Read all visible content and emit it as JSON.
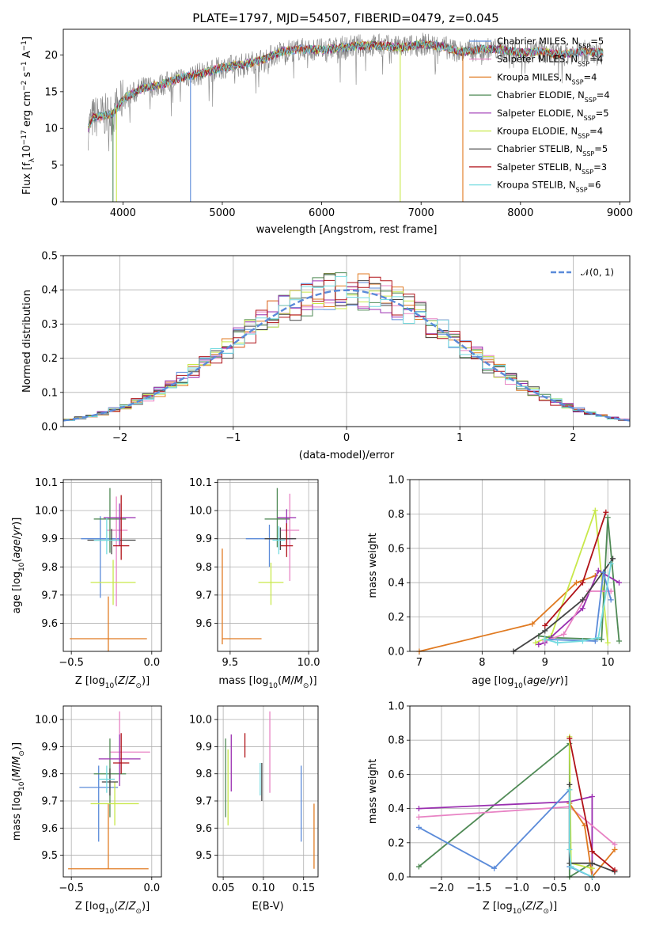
{
  "title": "PLATE=1797, MJD=54507, FIBERID=0479, z=0.045",
  "colors": {
    "chabrier_miles": "#5b8bd9",
    "salpeter_miles": "#e883c4",
    "kroupa_miles": "#e07a21",
    "chabrier_elodie": "#4f8a55",
    "salpeter_elodie": "#9a2fb0",
    "kroupa_elodie": "#c8e84a",
    "chabrier_stelib": "#444444",
    "salpeter_stelib": "#b01218",
    "kroupa_stelib": "#74dbe0",
    "normal": "#5b8bd9"
  },
  "chart_data": [
    {
      "id": "spectrum",
      "type": "line",
      "xlabel": "wavelength [Angstrom, rest frame]",
      "ylabel": "Flux [f_λ10^-17 erg cm^-2 s^-1 A^-1]",
      "xlim": [
        3400,
        9100
      ],
      "ylim": [
        0,
        23.5
      ],
      "xticks": [
        "4000",
        "5000",
        "6000",
        "7000",
        "8000",
        "9000"
      ],
      "yticks": [
        "0",
        "5",
        "10",
        "15",
        "20"
      ],
      "continuum": {
        "x": [
          3650,
          3700,
          3900,
          4000,
          4200,
          4400,
          4600,
          4800,
          5000,
          5200,
          5400,
          5600,
          5800,
          6000,
          6200,
          6400,
          6600,
          6800,
          7000,
          7200,
          7400,
          7600,
          7800,
          8000,
          8200,
          8400,
          8600,
          8800
        ],
        "y": [
          10,
          11.5,
          12,
          14,
          15.5,
          16,
          17,
          17.5,
          18.3,
          18.7,
          19.3,
          20.5,
          20.8,
          20.7,
          21.0,
          21.3,
          21.3,
          21.0,
          21.5,
          21.2,
          20.4,
          20.8,
          20.8,
          20.3,
          20.5,
          20.0,
          20.5,
          20.3
        ]
      },
      "legend": [
        {
          "label": "Chabrier MILES, N_SSP=5",
          "text": "Chabrier MILES, N",
          "sub": "SSP",
          "tail": "=5",
          "color": "#5b8bd9"
        },
        {
          "label": "Salpeter MILES, N_SSP=4",
          "text": "Salpeter MILES, N",
          "sub": "SSP",
          "tail": "=4",
          "color": "#e883c4"
        },
        {
          "label": "Kroupa MILES, N_SSP=4",
          "text": "Kroupa MILES, N",
          "sub": "SSP",
          "tail": "=4",
          "color": "#e07a21"
        },
        {
          "label": "Chabrier ELODIE, N_SSP=4",
          "text": "Chabrier ELODIE, N",
          "sub": "SSP",
          "tail": "=4",
          "color": "#4f8a55"
        },
        {
          "label": "Salpeter ELODIE, N_SSP=5",
          "text": "Salpeter ELODIE, N",
          "sub": "SSP",
          "tail": "=5",
          "color": "#9a2fb0"
        },
        {
          "label": "Kroupa ELODIE, N_SSP=4",
          "text": "Kroupa ELODIE, N",
          "sub": "SSP",
          "tail": "=4",
          "color": "#c8e84a"
        },
        {
          "label": "Chabrier STELIB, N_SSP=5",
          "text": "Chabrier STELIB, N",
          "sub": "SSP",
          "tail": "=5",
          "color": "#444444"
        },
        {
          "label": "Salpeter STELIB, N_SSP=3",
          "text": "Salpeter STELIB, N",
          "sub": "SSP",
          "tail": "=3",
          "color": "#b01218"
        },
        {
          "label": "Kroupa STELIB, N_SSP=6",
          "text": "Kroupa STELIB, N",
          "sub": "SSP",
          "tail": "=6",
          "color": "#74dbe0"
        }
      ],
      "grid": false
    },
    {
      "id": "residuals",
      "type": "line",
      "xlabel": "(data-model)/error",
      "ylabel": "Normed distribution",
      "xlim": [
        -2.5,
        2.5
      ],
      "ylim": [
        0,
        0.5
      ],
      "xticks": [
        "−2",
        "−1",
        "0",
        "1",
        "2"
      ],
      "yticks": [
        "0.0",
        "0.1",
        "0.2",
        "0.3",
        "0.4",
        "0.5"
      ],
      "legend": [
        {
          "label": "𝒩(0, 1)",
          "color": "#5b8bd9",
          "style": "dashed"
        }
      ],
      "grid": true
    },
    {
      "id": "age_vs_z",
      "type": "scatter",
      "xlabel": "Z [log10(Z/Z⊙)]",
      "ylabel": "age [log10(age/yr)]",
      "xlim": [
        -0.55,
        0.06
      ],
      "ylim": [
        9.5,
        10.11
      ],
      "xticks": [
        "−0.5",
        "0.0"
      ],
      "yticks": [
        "9.6",
        "9.7",
        "9.8",
        "9.9",
        "10.0",
        "10.1"
      ],
      "points": [
        {
          "x": -0.32,
          "y": 9.9,
          "xerr": [
            0.12,
            0.12
          ],
          "yerr": [
            0.21,
            0.08
          ],
          "color": "#5b8bd9"
        },
        {
          "x": -0.22,
          "y": 9.93,
          "xerr": [
            0.06,
            0.07
          ],
          "yerr": [
            0.27,
            0.12
          ],
          "color": "#e883c4"
        },
        {
          "x": -0.27,
          "y": 9.545,
          "xerr": [
            0.24,
            0.24
          ],
          "yerr": [
            0.12,
            0.15
          ],
          "color": "#e07a21"
        },
        {
          "x": -0.26,
          "y": 9.97,
          "xerr": [
            0.1,
            0.1
          ],
          "yerr": [
            0.12,
            0.11
          ],
          "color": "#4f8a55"
        },
        {
          "x": -0.2,
          "y": 9.975,
          "xerr": [
            0.1,
            0.1
          ],
          "yerr": [
            0.1,
            0.05
          ],
          "color": "#9a2fb0"
        },
        {
          "x": -0.24,
          "y": 9.745,
          "xerr": [
            0.14,
            0.14
          ],
          "yerr": [
            0.08,
            0.08
          ],
          "color": "#c8e84a"
        },
        {
          "x": -0.25,
          "y": 9.895,
          "xerr": [
            0.15,
            0.15
          ],
          "yerr": [
            0.05,
            0.04
          ],
          "color": "#444444"
        },
        {
          "x": -0.19,
          "y": 9.875,
          "xerr": [
            0.05,
            0.05
          ],
          "yerr": [
            0.05,
            0.18
          ],
          "color": "#b01218"
        },
        {
          "x": -0.28,
          "y": 9.895,
          "xerr": [
            0.08,
            0.08
          ],
          "yerr": [
            0.05,
            0.08
          ],
          "color": "#74dbe0"
        }
      ],
      "grid": true
    },
    {
      "id": "age_vs_mass",
      "type": "scatter",
      "xlabel": "mass [log10(M/M⊙)]",
      "ylabel": "",
      "xlim": [
        9.42,
        10.06
      ],
      "ylim": [
        9.5,
        10.11
      ],
      "xticks": [
        "9.5",
        "10.0"
      ],
      "yticks": [
        "9.6",
        "9.7",
        "9.8",
        "9.9",
        "10.0",
        "10.1"
      ],
      "points": [
        {
          "x": 9.75,
          "y": 9.9,
          "xerr": [
            0.15,
            0.15
          ],
          "yerr": [
            0.1,
            0.05
          ],
          "color": "#5b8bd9"
        },
        {
          "x": 9.88,
          "y": 9.93,
          "xerr": [
            0.06,
            0.06
          ],
          "yerr": [
            0.18,
            0.13
          ],
          "color": "#e883c4"
        },
        {
          "x": 9.45,
          "y": 9.545,
          "xerr": [
            0.0,
            0.25
          ],
          "yerr": [
            0.02,
            0.32
          ],
          "color": "#e07a21"
        },
        {
          "x": 9.8,
          "y": 9.97,
          "xerr": [
            0.08,
            0.08
          ],
          "yerr": [
            0.1,
            0.11
          ],
          "color": "#4f8a55"
        },
        {
          "x": 9.86,
          "y": 9.975,
          "xerr": [
            0.06,
            0.06
          ],
          "yerr": [
            0.05,
            0.03
          ],
          "color": "#9a2fb0"
        },
        {
          "x": 9.76,
          "y": 9.745,
          "xerr": [
            0.08,
            0.08
          ],
          "yerr": [
            0.08,
            0.07
          ],
          "color": "#c8e84a"
        },
        {
          "x": 9.82,
          "y": 9.9,
          "xerr": [
            0.1,
            0.1
          ],
          "yerr": [
            0.04,
            0.04
          ],
          "color": "#444444"
        },
        {
          "x": 9.86,
          "y": 9.875,
          "xerr": [
            0.04,
            0.04
          ],
          "yerr": [
            0.04,
            0.08
          ],
          "color": "#b01218"
        },
        {
          "x": 9.81,
          "y": 9.895,
          "xerr": [
            0.04,
            0.04
          ],
          "yerr": [
            0.05,
            0.05
          ],
          "color": "#74dbe0"
        }
      ],
      "grid": true
    },
    {
      "id": "weight_vs_age",
      "type": "line",
      "xlabel": "age [log10(age/yr)]",
      "ylabel": "mass weight",
      "xlim": [
        6.85,
        10.35
      ],
      "ylim": [
        0,
        1.0
      ],
      "xticks": [
        "7",
        "8",
        "9",
        "10"
      ],
      "yticks": [
        "0.0",
        "0.2",
        "0.4",
        "0.6",
        "0.8",
        "1.0"
      ],
      "series": [
        {
          "color": "#e07a21",
          "x": [
            7.0,
            8.8,
            9.5,
            9.8
          ],
          "y": [
            0.0,
            0.16,
            0.4,
            0.44
          ]
        },
        {
          "color": "#c8e84a",
          "x": [
            8.85,
            9.1,
            9.8,
            10.0
          ],
          "y": [
            0.05,
            0.09,
            0.82,
            0.05
          ]
        },
        {
          "color": "#4f8a55",
          "x": [
            8.9,
            9.1,
            9.9,
            10.0,
            10.18
          ],
          "y": [
            0.09,
            0.08,
            0.07,
            0.78,
            0.06
          ]
        },
        {
          "color": "#9a2fb0",
          "x": [
            8.9,
            9.0,
            9.6,
            9.85,
            10.18
          ],
          "y": [
            0.04,
            0.05,
            0.25,
            0.47,
            0.4
          ]
        },
        {
          "color": "#e883c4",
          "x": [
            9.0,
            9.3,
            9.7,
            10.05
          ],
          "y": [
            0.06,
            0.1,
            0.35,
            0.35
          ]
        },
        {
          "color": "#444444",
          "x": [
            8.5,
            9.0,
            9.6,
            10.08
          ],
          "y": [
            0.0,
            0.12,
            0.3,
            0.54
          ]
        },
        {
          "color": "#b01218",
          "x": [
            9.0,
            9.6,
            9.97
          ],
          "y": [
            0.15,
            0.4,
            0.81
          ]
        },
        {
          "color": "#5b8bd9",
          "x": [
            9.0,
            9.8,
            9.93,
            10.05
          ],
          "y": [
            0.07,
            0.06,
            0.46,
            0.3
          ]
        },
        {
          "color": "#74dbe0",
          "x": [
            9.0,
            9.2,
            9.6,
            9.85,
            10.05
          ],
          "y": [
            0.07,
            0.05,
            0.06,
            0.08,
            0.51
          ]
        }
      ],
      "grid": true
    },
    {
      "id": "mass_vs_z",
      "type": "scatter",
      "xlabel": "Z [log10(Z/Z⊙)]",
      "ylabel": "mass [log10(M/M⊙)]",
      "xlim": [
        -0.55,
        0.06
      ],
      "ylim": [
        9.42,
        10.05
      ],
      "xticks": [
        "−0.5",
        "0.0"
      ],
      "yticks": [
        "9.5",
        "9.6",
        "9.7",
        "9.8",
        "9.9",
        "10.0"
      ],
      "points": [
        {
          "x": -0.33,
          "y": 9.75,
          "xerr": [
            0.12,
            0.12
          ],
          "yerr": [
            0.2,
            0.08
          ],
          "color": "#5b8bd9"
        },
        {
          "x": -0.2,
          "y": 9.88,
          "xerr": [
            0.06,
            0.19
          ],
          "yerr": [
            0.1,
            0.15
          ],
          "color": "#e883c4"
        },
        {
          "x": -0.27,
          "y": 9.45,
          "xerr": [
            0.25,
            0.25
          ],
          "yerr": [
            0.0,
            0.24
          ],
          "color": "#e07a21"
        },
        {
          "x": -0.26,
          "y": 9.8,
          "xerr": [
            0.1,
            0.1
          ],
          "yerr": [
            0.16,
            0.13
          ],
          "color": "#4f8a55"
        },
        {
          "x": -0.2,
          "y": 9.855,
          "xerr": [
            0.13,
            0.13
          ],
          "yerr": [
            0.1,
            0.09
          ],
          "color": "#9a2fb0"
        },
        {
          "x": -0.23,
          "y": 9.69,
          "xerr": [
            0.15,
            0.15
          ],
          "yerr": [
            0.08,
            0.08
          ],
          "color": "#c8e84a"
        },
        {
          "x": -0.26,
          "y": 9.77,
          "xerr": [
            0.05,
            0.05
          ],
          "yerr": [
            0.05,
            0.05
          ],
          "color": "#444444"
        },
        {
          "x": -0.19,
          "y": 9.84,
          "xerr": [
            0.05,
            0.05
          ],
          "yerr": [
            0.04,
            0.11
          ],
          "color": "#b01218"
        },
        {
          "x": -0.28,
          "y": 9.78,
          "xerr": [
            0.05,
            0.05
          ],
          "yerr": [
            0.05,
            0.05
          ],
          "color": "#74dbe0"
        }
      ],
      "grid": true
    },
    {
      "id": "mass_vs_ebv",
      "type": "scatter",
      "xlabel": "E(B-V)",
      "ylabel": "",
      "xlim": [
        0.043,
        0.168
      ],
      "ylim": [
        9.42,
        10.05
      ],
      "xticks": [
        "0.05",
        "0.10",
        "0.15"
      ],
      "yticks": [
        "9.5",
        "9.6",
        "9.7",
        "9.8",
        "9.9",
        "10.0"
      ],
      "points": [
        {
          "x": 0.147,
          "y": 9.75,
          "yerr": [
            0.2,
            0.08
          ],
          "color": "#5b8bd9"
        },
        {
          "x": 0.108,
          "y": 9.88,
          "yerr": [
            0.15,
            0.15
          ],
          "color": "#e883c4"
        },
        {
          "x": 0.163,
          "y": 9.45,
          "yerr": [
            0.0,
            0.24
          ],
          "color": "#e07a21"
        },
        {
          "x": 0.053,
          "y": 9.8,
          "yerr": [
            0.16,
            0.13
          ],
          "color": "#4f8a55"
        },
        {
          "x": 0.06,
          "y": 9.855,
          "yerr": [
            0.12,
            0.09
          ],
          "color": "#9a2fb0"
        },
        {
          "x": 0.056,
          "y": 9.69,
          "yerr": [
            0.08,
            0.2
          ],
          "color": "#c8e84a"
        },
        {
          "x": 0.098,
          "y": 9.77,
          "yerr": [
            0.07,
            0.07
          ],
          "color": "#444444"
        },
        {
          "x": 0.077,
          "y": 9.9,
          "yerr": [
            0.04,
            0.05
          ],
          "color": "#b01218"
        },
        {
          "x": 0.096,
          "y": 9.78,
          "yerr": [
            0.06,
            0.06
          ],
          "color": "#74dbe0"
        }
      ],
      "grid": true
    },
    {
      "id": "weight_vs_z",
      "type": "line",
      "xlabel": "Z [log10(Z/Z⊙)]",
      "ylabel": "mass weight",
      "xlim": [
        -2.42,
        0.5
      ],
      "ylim": [
        0,
        1.0
      ],
      "xticks": [
        "−2.0",
        "−1.5",
        "−1.0",
        "−0.5",
        "0.0"
      ],
      "yticks": [
        "0.0",
        "0.2",
        "0.4",
        "0.6",
        "0.8",
        "1.0"
      ],
      "series": [
        {
          "color": "#4f8a55",
          "x": [
            -2.3,
            -0.3,
            -0.3,
            0.0
          ],
          "y": [
            0.06,
            0.78,
            0.0,
            0.08
          ]
        },
        {
          "color": "#9a2fb0",
          "x": [
            -2.3,
            -0.3,
            0.0,
            0.0
          ],
          "y": [
            0.4,
            0.44,
            0.47,
            0.0
          ]
        },
        {
          "color": "#e883c4",
          "x": [
            -2.3,
            -0.3,
            0.3
          ],
          "y": [
            0.35,
            0.41,
            0.19
          ]
        },
        {
          "color": "#5b8bd9",
          "x": [
            -2.3,
            -1.3,
            -0.3,
            -0.3,
            0.0
          ],
          "y": [
            0.29,
            0.05,
            0.51,
            0.06,
            0.0
          ]
        },
        {
          "color": "#e07a21",
          "x": [
            -0.3,
            -0.1,
            0.0,
            0.3
          ],
          "y": [
            0.43,
            0.3,
            0.0,
            0.16
          ]
        },
        {
          "color": "#c8e84a",
          "x": [
            -0.3,
            -0.28,
            0.0
          ],
          "y": [
            0.82,
            0.08,
            0.05
          ]
        },
        {
          "color": "#444444",
          "x": [
            -0.3,
            -0.3,
            0.0,
            0.3
          ],
          "y": [
            0.54,
            0.08,
            0.08,
            0.03
          ]
        },
        {
          "color": "#b01218",
          "x": [
            -0.3,
            0.0,
            0.3
          ],
          "y": [
            0.81,
            0.15,
            0.04
          ]
        },
        {
          "color": "#74dbe0",
          "x": [
            -0.3,
            -0.3,
            -0.28,
            0.0
          ],
          "y": [
            0.51,
            0.16,
            0.06,
            0.0
          ]
        }
      ],
      "grid": true
    }
  ]
}
